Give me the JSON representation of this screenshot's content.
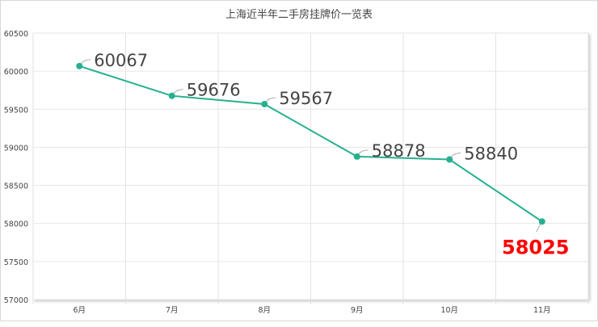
{
  "chart_data": {
    "type": "line",
    "title": "上海近半年二手房挂牌价一览表",
    "categories": [
      "6月",
      "7月",
      "8月",
      "9月",
      "10月",
      "11月"
    ],
    "series": [
      {
        "values": [
          60067,
          59676,
          59567,
          58878,
          58840,
          58025
        ]
      }
    ],
    "ylim": [
      57000,
      60500
    ],
    "yticks": [
      57000,
      57500,
      58000,
      58500,
      59000,
      59500,
      60000,
      60500
    ],
    "grid": true,
    "line_color": "#26b08f",
    "highlight_color": "#ff0000",
    "label_color": "#444444"
  }
}
